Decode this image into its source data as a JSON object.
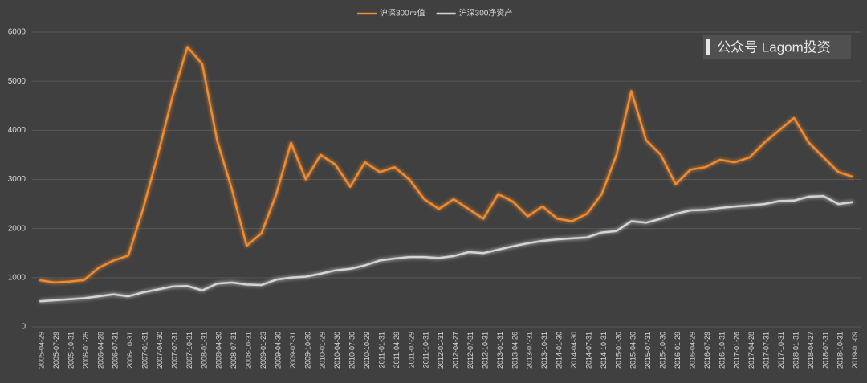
{
  "chart_data": {
    "type": "line",
    "categories": [
      "2005-04-29",
      "2005-07-29",
      "2005-10-31",
      "2006-01-25",
      "2006-04-28",
      "2006-07-31",
      "2006-10-31",
      "2007-01-31",
      "2007-04-30",
      "2007-07-31",
      "2007-10-31",
      "2008-01-31",
      "2008-04-30",
      "2008-07-31",
      "2008-10-31",
      "2009-01-23",
      "2009-04-30",
      "2009-07-31",
      "2009-10-30",
      "2010-01-29",
      "2010-04-30",
      "2010-07-30",
      "2010-10-29",
      "2011-01-31",
      "2011-04-29",
      "2011-07-29",
      "2011-10-31",
      "2012-01-31",
      "2012-04-27",
      "2012-07-31",
      "2012-10-31",
      "2013-01-31",
      "2013-04-26",
      "2013-07-31",
      "2013-10-31",
      "2014-01-30",
      "2014-04-30",
      "2014-07-31",
      "2014-10-31",
      "2015-01-30",
      "2015-04-30",
      "2015-07-31",
      "2015-10-30",
      "2016-01-29",
      "2016-04-29",
      "2016-07-29",
      "2016-10-31",
      "2017-01-26",
      "2017-04-28",
      "2017-07-31",
      "2017-10-31",
      "2018-01-31",
      "2018-04-27",
      "2018-07-31",
      "2018-10-31",
      "2019-01-09"
    ],
    "series": [
      {
        "name": "沪深300市值",
        "color": "#f28a2e",
        "values": [
          950,
          900,
          920,
          950,
          1200,
          1350,
          1450,
          2400,
          3500,
          4700,
          5700,
          5350,
          3800,
          2800,
          1650,
          1900,
          2700,
          3750,
          3000,
          3500,
          3300,
          2850,
          3350,
          3150,
          3250,
          3000,
          2600,
          2400,
          2600,
          2400,
          2200,
          2700,
          2550,
          2250,
          2450,
          2200,
          2150,
          2300,
          2700,
          3500,
          4800,
          3800,
          3500,
          2900,
          3200,
          3250,
          3400,
          3350,
          3450,
          3750,
          4000,
          4250,
          3750,
          3450,
          3150,
          3050
        ]
      },
      {
        "name": "沪深300净资产",
        "color": "#d4d4d4",
        "values": [
          520,
          540,
          560,
          580,
          620,
          660,
          620,
          700,
          760,
          820,
          830,
          740,
          880,
          900,
          860,
          850,
          960,
          1000,
          1020,
          1080,
          1150,
          1180,
          1250,
          1350,
          1390,
          1420,
          1420,
          1400,
          1440,
          1520,
          1500,
          1570,
          1640,
          1700,
          1750,
          1780,
          1800,
          1820,
          1920,
          1950,
          2150,
          2120,
          2200,
          2300,
          2370,
          2380,
          2420,
          2450,
          2470,
          2500,
          2560,
          2570,
          2650,
          2660,
          2500,
          2540
        ]
      }
    ],
    "ylim": [
      0,
      6000
    ],
    "yticks": [
      0,
      1000,
      2000,
      3000,
      4000,
      5000,
      6000
    ],
    "grid": true,
    "legend": "top",
    "annotation": "▍公众号  Lagom投资"
  }
}
